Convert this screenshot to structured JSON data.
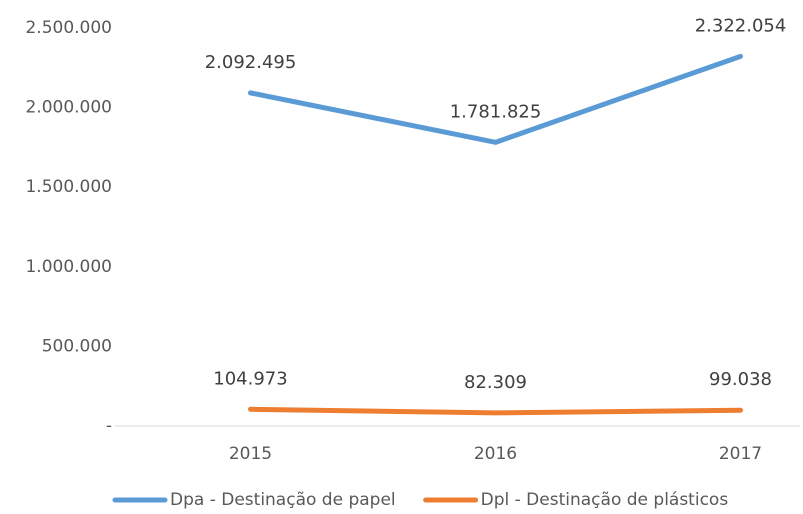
{
  "chart_data": {
    "type": "line",
    "categories": [
      "2015",
      "2016",
      "2017"
    ],
    "series": [
      {
        "name": "Dpa - Destinação de papel",
        "color": "#5b9bd5",
        "values": [
          2092495,
          1781825,
          2322054
        ],
        "value_labels": [
          "2.092.495",
          "1.781.825",
          "2.322.054"
        ]
      },
      {
        "name": "Dpl - Destinação de plásticos",
        "color": "#ed7d31",
        "values": [
          104973,
          82309,
          99038
        ],
        "value_labels": [
          "104.973",
          "82.309",
          "99.038"
        ]
      }
    ],
    "ylim": [
      0,
      2500000
    ],
    "yticks": [
      {
        "value": 0,
        "label": "-"
      },
      {
        "value": 500000,
        "label": "500.000"
      },
      {
        "value": 1000000,
        "label": "1.000.000"
      },
      {
        "value": 1500000,
        "label": "1.500.000"
      },
      {
        "value": 2000000,
        "label": "2.000.000"
      },
      {
        "value": 2500000,
        "label": "2.500.000"
      }
    ],
    "grid": false,
    "legend": "bottom"
  }
}
